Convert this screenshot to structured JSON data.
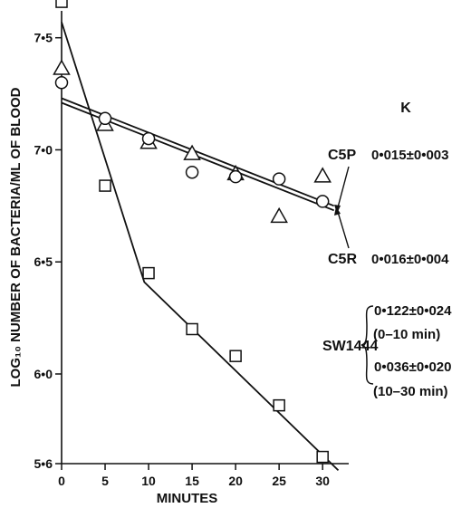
{
  "chart_data": {
    "type": "scatter",
    "xlabel": "MINUTES",
    "ylabel": "LOG₁₀ NUMBER OF BACTERIA/ML OF BLOOD",
    "xlim": [
      0,
      33
    ],
    "ylim": [
      5.6,
      7.62
    ],
    "xticks": [
      0,
      5,
      10,
      15,
      20,
      25,
      30
    ],
    "xtick_labels": [
      "0",
      "5",
      "10",
      "15",
      "20",
      "25",
      "30"
    ],
    "yticks": [
      5.6,
      6.0,
      6.5,
      7.0,
      7.5
    ],
    "ytick_labels": [
      "5•6",
      "6•0",
      "6•5",
      "7•0",
      "7•5"
    ],
    "k_header": "K",
    "series": [
      {
        "name": "C5P",
        "marker": "triangle",
        "k_value": "0•015±0•003",
        "x": [
          0,
          5,
          10,
          15,
          20,
          25,
          30
        ],
        "y": [
          7.36,
          7.11,
          7.03,
          6.98,
          6.89,
          6.7,
          6.88
        ],
        "fit": [
          [
            0,
            7.21
          ],
          [
            31.3,
            6.73
          ]
        ]
      },
      {
        "name": "C5R",
        "marker": "circle",
        "k_value": "0•016±0•004",
        "x": [
          0,
          5,
          10,
          15,
          20,
          25,
          30
        ],
        "y": [
          7.3,
          7.14,
          7.05,
          6.9,
          6.88,
          6.87,
          6.77
        ],
        "fit": [
          [
            0,
            7.23
          ],
          [
            31.3,
            6.75
          ]
        ]
      },
      {
        "name": "SW1444",
        "marker": "square",
        "k_values": [
          {
            "value": "0•122±0•024",
            "range": "(0–10 min)"
          },
          {
            "value": "0•036±0•020",
            "range": "(10–30 min)"
          }
        ],
        "x": [
          0,
          5,
          10,
          15,
          20,
          25,
          30
        ],
        "y": [
          7.66,
          6.84,
          6.45,
          6.2,
          6.08,
          5.86,
          5.63
        ],
        "fit": [
          [
            0,
            7.57
          ],
          [
            9.5,
            6.41
          ],
          [
            31.8,
            5.57
          ]
        ]
      }
    ]
  }
}
